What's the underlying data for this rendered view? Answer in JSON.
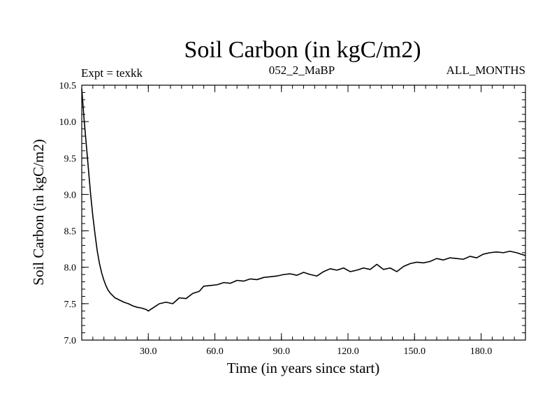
{
  "chart_data": {
    "type": "line",
    "title": "Soil Carbon (in kgC/m2)",
    "subtitle_left": "Expt = texkk",
    "subtitle_center": "052_2_MaBP",
    "subtitle_right": "ALL_MONTHS",
    "xlabel": "Time (in years since start)",
    "ylabel": "Soil Carbon (in kgC/m2)",
    "xlim": [
      0,
      200
    ],
    "ylim": [
      7.0,
      10.5
    ],
    "x_ticks": [
      30,
      60,
      90,
      120,
      150,
      180
    ],
    "x_tick_labels": [
      "30.0",
      "60.0",
      "90.0",
      "120.0",
      "150.0",
      "180.0"
    ],
    "y_ticks": [
      7.0,
      7.5,
      8.0,
      8.5,
      9.0,
      9.5,
      10.0,
      10.5
    ],
    "y_tick_labels": [
      "7.0",
      "7.5",
      "8.0",
      "8.5",
      "9.0",
      "9.5",
      "10.0",
      "10.5"
    ],
    "x_minor_step": 5,
    "y_minor_step": 0.1,
    "series": [
      {
        "name": "Soil Carbon",
        "x": [
          0,
          1,
          2,
          3,
          4,
          5,
          6,
          7,
          8,
          9,
          10,
          11,
          12,
          13,
          14,
          15,
          17,
          19,
          21,
          23,
          25,
          27,
          29,
          30,
          31,
          33,
          35,
          38,
          41,
          44,
          47,
          50,
          53,
          55,
          58,
          61,
          64,
          67,
          70,
          73,
          76,
          79,
          82,
          85,
          88,
          91,
          94,
          97,
          100,
          103,
          106,
          109,
          112,
          115,
          118,
          121,
          124,
          127,
          130,
          133,
          136,
          139,
          142,
          145,
          148,
          151,
          154,
          157,
          160,
          163,
          166,
          169,
          172,
          175,
          178,
          181,
          184,
          187,
          190,
          193,
          196,
          200
        ],
        "y": [
          10.45,
          10.05,
          9.7,
          9.35,
          9.0,
          8.7,
          8.45,
          8.22,
          8.05,
          7.92,
          7.82,
          7.74,
          7.68,
          7.64,
          7.61,
          7.58,
          7.55,
          7.52,
          7.5,
          7.47,
          7.45,
          7.44,
          7.42,
          7.4,
          7.42,
          7.46,
          7.5,
          7.52,
          7.5,
          7.58,
          7.57,
          7.64,
          7.67,
          7.74,
          7.75,
          7.76,
          7.79,
          7.78,
          7.82,
          7.81,
          7.84,
          7.83,
          7.86,
          7.87,
          7.88,
          7.9,
          7.91,
          7.89,
          7.93,
          7.9,
          7.88,
          7.94,
          7.98,
          7.96,
          7.99,
          7.94,
          7.96,
          7.99,
          7.97,
          8.04,
          7.97,
          7.99,
          7.94,
          8.01,
          8.05,
          8.07,
          8.06,
          8.08,
          8.12,
          8.1,
          8.13,
          8.12,
          8.11,
          8.15,
          8.13,
          8.18,
          8.2,
          8.21,
          8.2,
          8.22,
          8.2,
          8.16
        ]
      }
    ]
  }
}
